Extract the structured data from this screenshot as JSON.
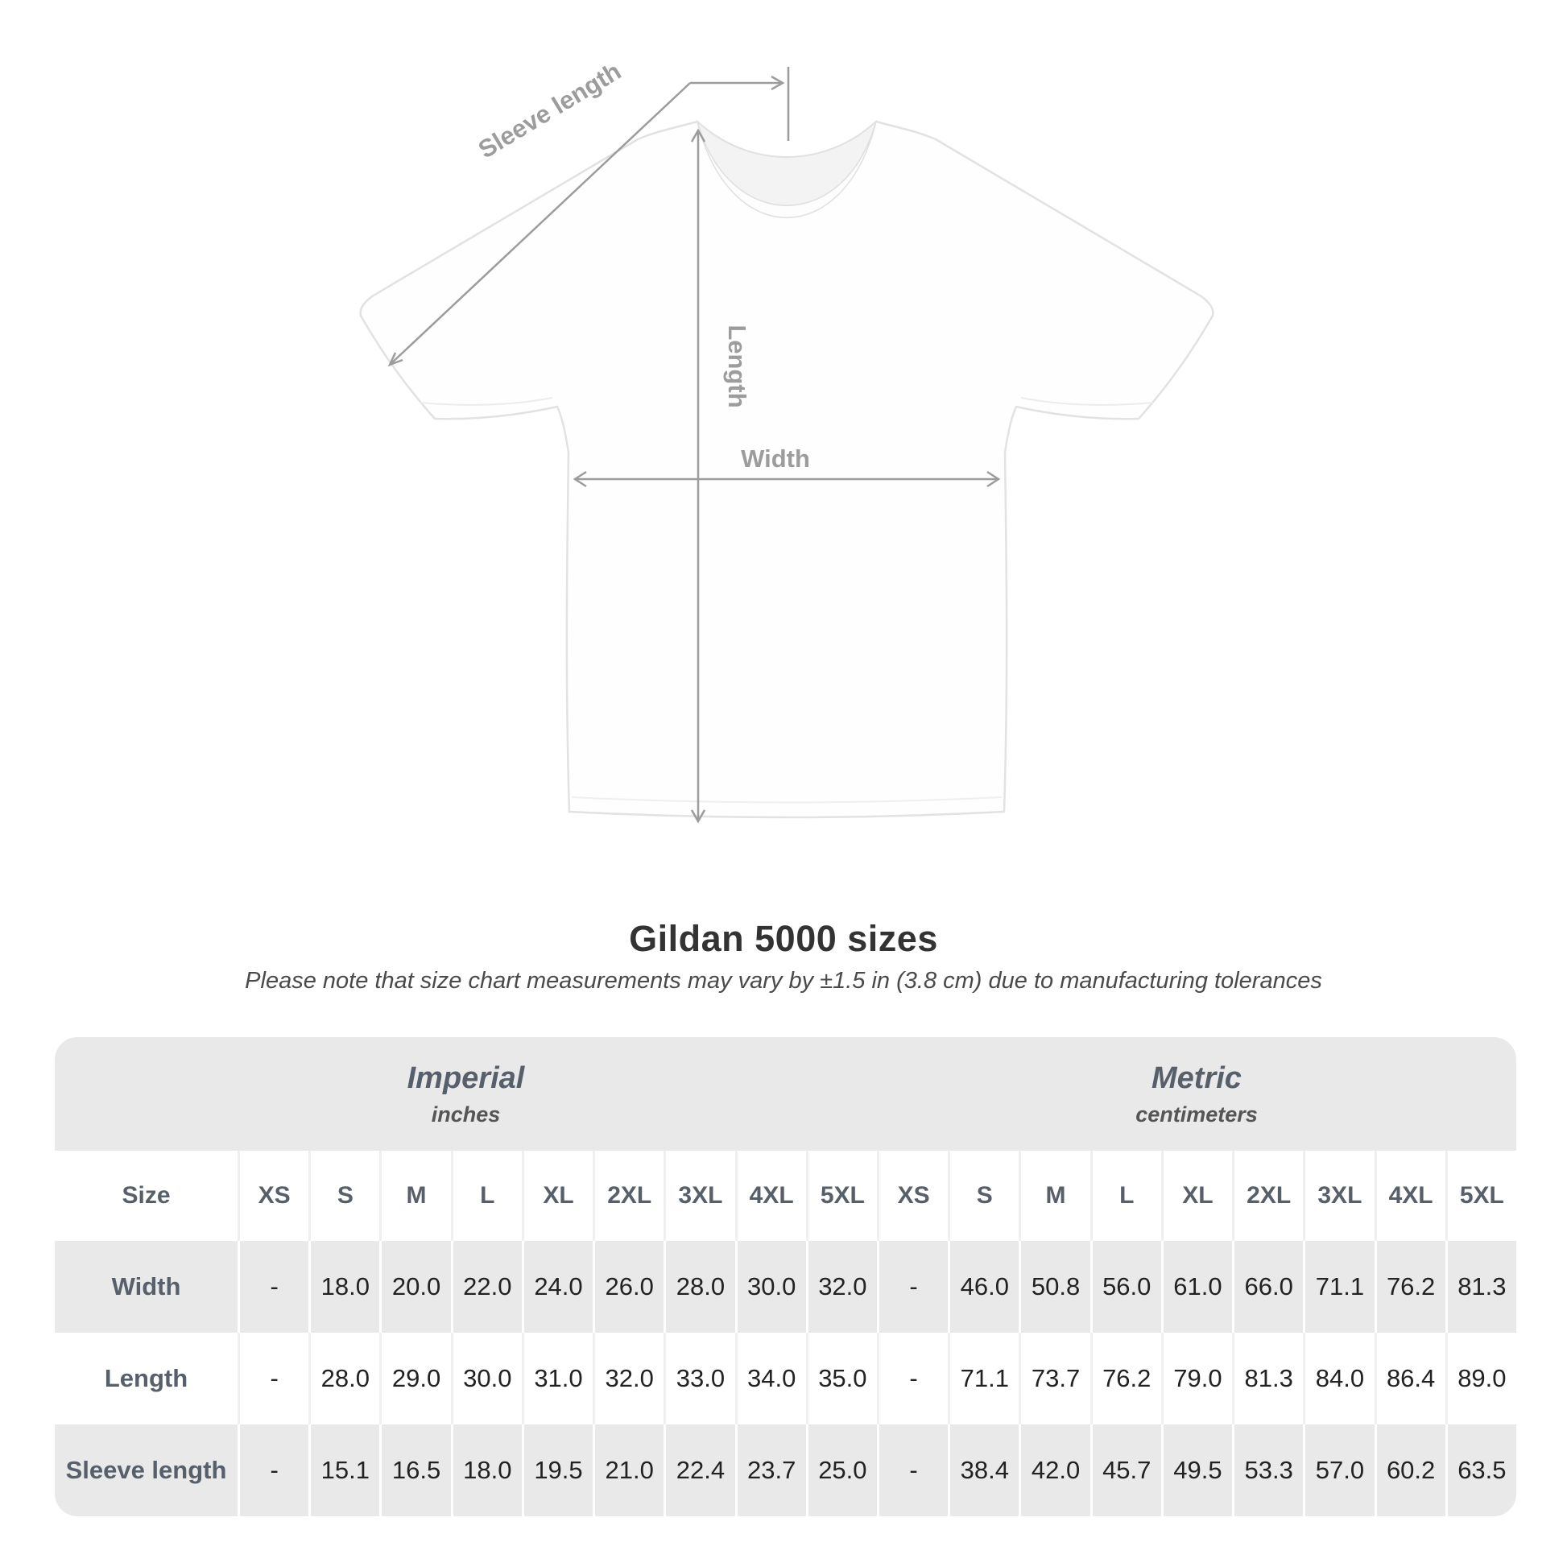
{
  "figure": {
    "labels": {
      "sleeve_length": "Sleeve length",
      "length": "Length",
      "width": "Width"
    }
  },
  "title": "Gildan 5000 sizes",
  "subtitle": "Please note that size chart measurements may vary by ±1.5 in (3.8 cm) due to manufacturing tolerances",
  "colors": {
    "band_gray": "#e9e9e9",
    "annotation_gray": "#9c9c9c",
    "header_text": "#57606a",
    "value_text": "#222222"
  },
  "chart_data": {
    "type": "table",
    "title": "Gildan 5000 sizes",
    "corner_label": "Size",
    "unit_groups": [
      {
        "label": "Imperial",
        "unit": "inches"
      },
      {
        "label": "Metric",
        "unit": "centimeters"
      }
    ],
    "sizes": [
      "XS",
      "S",
      "M",
      "L",
      "XL",
      "2XL",
      "3XL",
      "4XL",
      "5XL"
    ],
    "rows": [
      {
        "label": "Width",
        "imperial": [
          "-",
          "18.0",
          "20.0",
          "22.0",
          "24.0",
          "26.0",
          "28.0",
          "30.0",
          "32.0"
        ],
        "metric": [
          "-",
          "46.0",
          "50.8",
          "56.0",
          "61.0",
          "66.0",
          "71.1",
          "76.2",
          "81.3"
        ]
      },
      {
        "label": "Length",
        "imperial": [
          "-",
          "28.0",
          "29.0",
          "30.0",
          "31.0",
          "32.0",
          "33.0",
          "34.0",
          "35.0"
        ],
        "metric": [
          "-",
          "71.1",
          "73.7",
          "76.2",
          "79.0",
          "81.3",
          "84.0",
          "86.4",
          "89.0"
        ]
      },
      {
        "label": "Sleeve length",
        "imperial": [
          "-",
          "15.1",
          "16.5",
          "18.0",
          "19.5",
          "21.0",
          "22.4",
          "23.7",
          "25.0"
        ],
        "metric": [
          "-",
          "38.4",
          "42.0",
          "45.7",
          "49.5",
          "53.3",
          "57.0",
          "60.2",
          "63.5"
        ]
      }
    ]
  }
}
